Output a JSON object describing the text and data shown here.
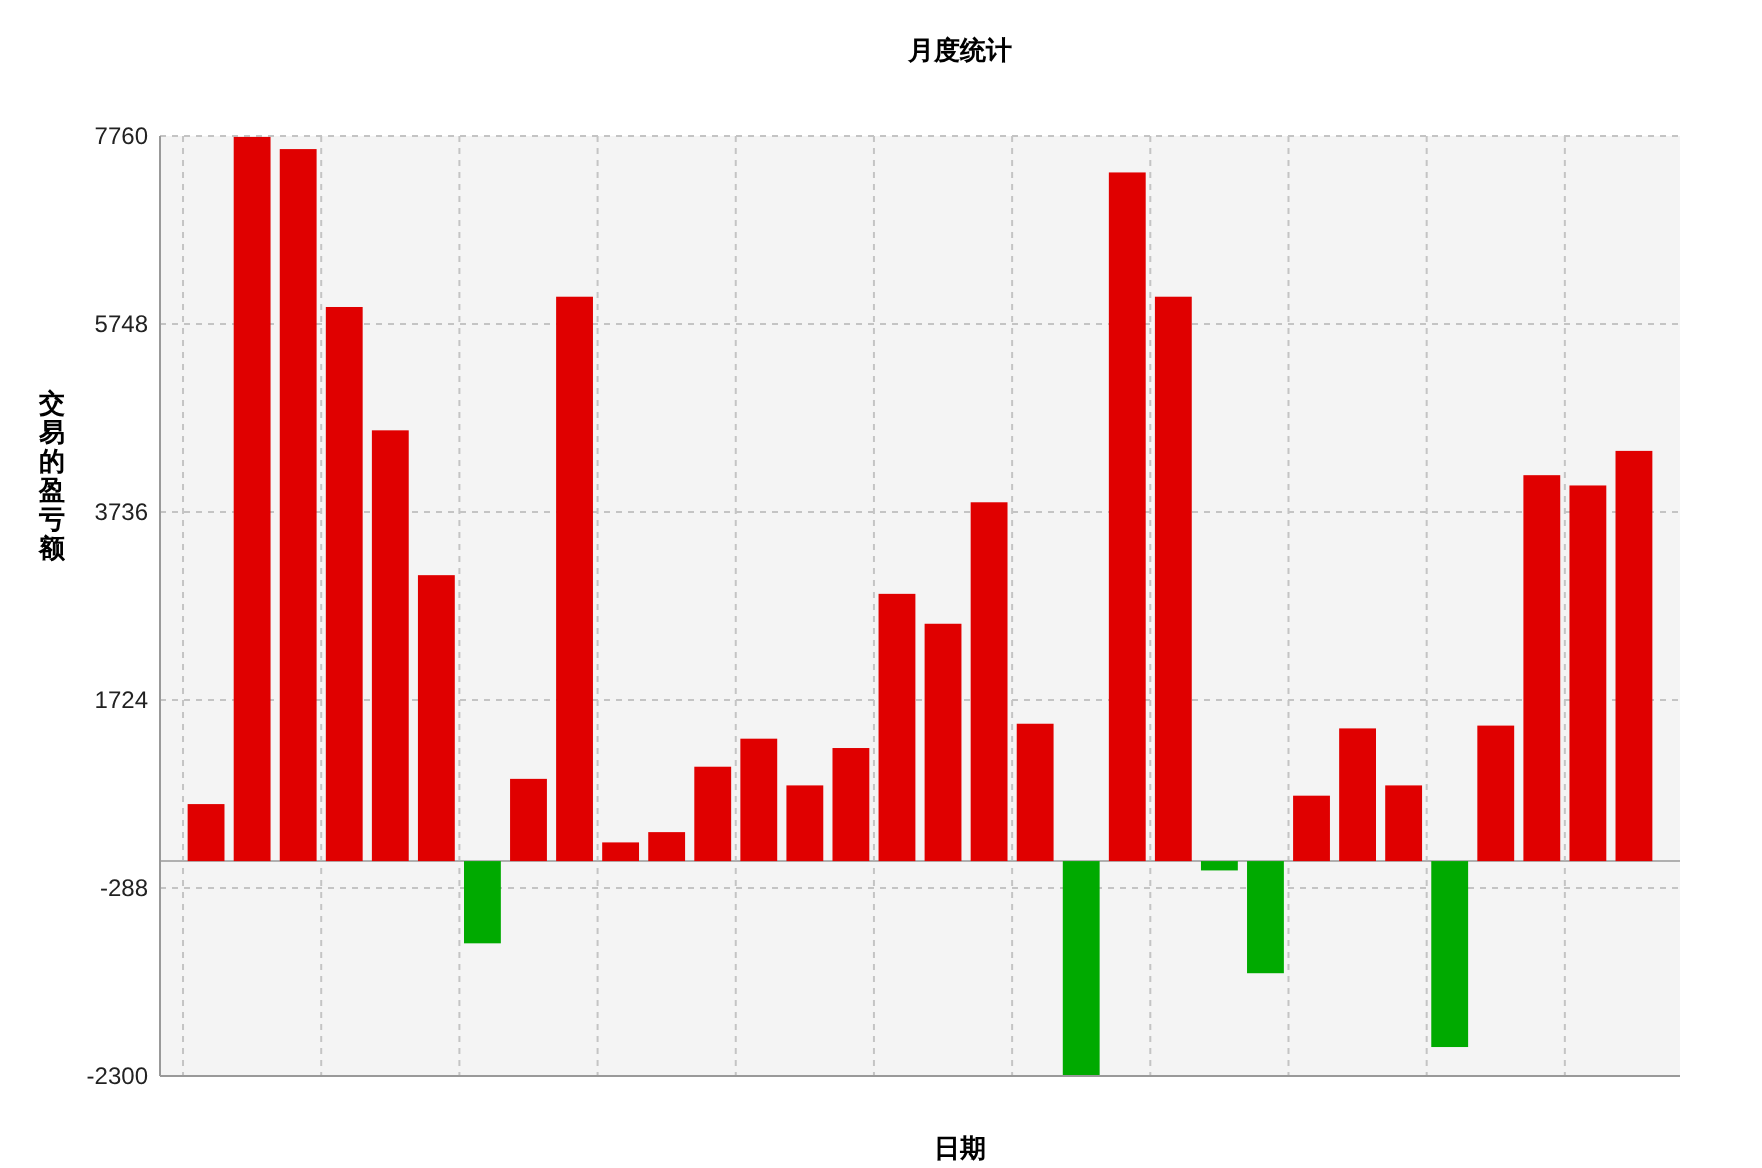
{
  "chart_data": {
    "type": "bar",
    "title": "月度统计",
    "xlabel": "日期",
    "ylabel": "交易的盈亏额",
    "categories": [
      null,
      null,
      null,
      null,
      null,
      null,
      null,
      null,
      null,
      null,
      null,
      null,
      null,
      null,
      null,
      null,
      null,
      null,
      null,
      null,
      null,
      null,
      null,
      null,
      null,
      null,
      null,
      null,
      null,
      null,
      null,
      null
    ],
    "values": [
      610,
      7750,
      7620,
      5930,
      4610,
      3060,
      -880,
      880,
      6040,
      200,
      310,
      1010,
      1310,
      810,
      1210,
      2860,
      2540,
      3840,
      1470,
      -2290,
      7370,
      6040,
      -100,
      -1200,
      700,
      1420,
      810,
      -1990,
      1450,
      4130,
      4020,
      4390
    ],
    "colors": [
      "#e00000",
      "#e00000",
      "#e00000",
      "#e00000",
      "#e00000",
      "#e00000",
      "#00aa00",
      "#e00000",
      "#e00000",
      "#e00000",
      "#e00000",
      "#e00000",
      "#e00000",
      "#e00000",
      "#e00000",
      "#e00000",
      "#e00000",
      "#e00000",
      "#e00000",
      "#00aa00",
      "#e00000",
      "#e00000",
      "#00aa00",
      "#00aa00",
      "#e00000",
      "#e00000",
      "#e00000",
      "#00aa00",
      "#e00000",
      "#e00000",
      "#e00000",
      "#e00000"
    ],
    "ylim": [
      -2300,
      7760
    ],
    "yticks": [
      -2300,
      -288,
      1724,
      3736,
      5748,
      7760
    ],
    "grid": true,
    "ref_lines": [
      {
        "axis": "y",
        "value": 0,
        "color": "#b0b0b0"
      }
    ]
  }
}
